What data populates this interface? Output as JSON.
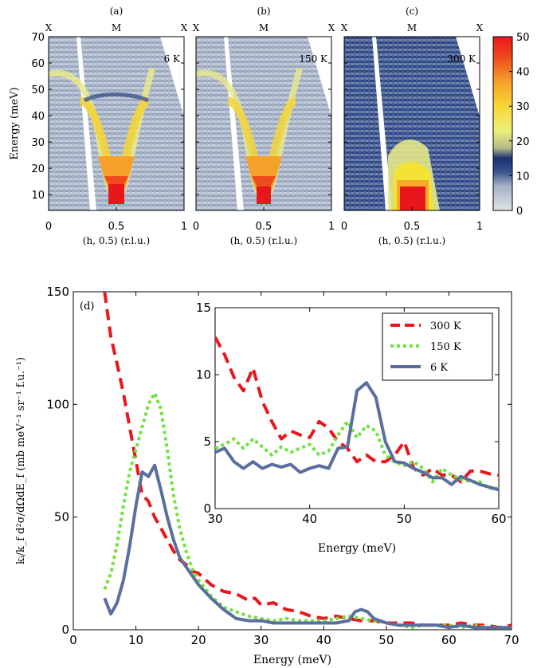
{
  "colors": {
    "line_300K": "#e8171c",
    "line_150K": "#6ee33c",
    "line_6K": "#5a6f9e",
    "colormap": [
      "#d9dde2",
      "#a7b4c8",
      "#3c5590",
      "#1a2f72",
      "#e4e88a",
      "#f5e236",
      "#f6a92a",
      "#f0501d",
      "#e8171c"
    ]
  },
  "top_panels": {
    "ylabel": "Energy (meV)",
    "xlabel": "(h, 0.5) (r.l.u.)",
    "x_ticks": [
      "0",
      "0.5",
      "1"
    ],
    "y_ticks": [
      "10",
      "20",
      "30",
      "40",
      "50",
      "60",
      "70"
    ],
    "sym_labels": [
      "X",
      "M",
      "X"
    ],
    "panels": [
      {
        "tag": "(a)",
        "temp": "6 K"
      },
      {
        "tag": "(b)",
        "temp": "150 K"
      },
      {
        "tag": "(c)",
        "temp": "300 K"
      }
    ],
    "colorbar": {
      "ticks": [
        "0",
        "10",
        "20",
        "30",
        "40",
        "50"
      ],
      "range": [
        0,
        50
      ]
    }
  },
  "chart_data": [
    {
      "type": "heatmap",
      "panel": "(a)",
      "label": "6 K",
      "xlim": [
        0,
        1
      ],
      "ylim": [
        4,
        70
      ],
      "colorbar_range": [
        0,
        50
      ],
      "note": "Dispersion V from ~58 meV at h=0 down to maximum intensity at h=0.5, E≈10 meV"
    },
    {
      "type": "heatmap",
      "panel": "(b)",
      "label": "150 K",
      "xlim": [
        0,
        1
      ],
      "ylim": [
        4,
        70
      ],
      "colorbar_range": [
        0,
        50
      ]
    },
    {
      "type": "heatmap",
      "panel": "(c)",
      "label": "300 K",
      "xlim": [
        0,
        1
      ],
      "ylim": [
        4,
        70
      ],
      "colorbar_range": [
        0,
        50
      ]
    },
    {
      "type": "line",
      "panel": "(d)",
      "xlabel": "Energy (meV)",
      "ylabel": "ki/kf d²σ/dΩdEf (mb meV⁻¹ sr⁻¹ f.u.⁻¹)",
      "xlim": [
        0,
        70
      ],
      "ylim": [
        0,
        150
      ],
      "xticks": [
        0,
        10,
        20,
        30,
        40,
        50,
        60,
        70
      ],
      "yticks": [
        0,
        50,
        100,
        150
      ],
      "series": [
        {
          "name": "300 K",
          "x": [
            5,
            6,
            7,
            8,
            9,
            10,
            11,
            12,
            13,
            14,
            15,
            16,
            17,
            18,
            19,
            20,
            22,
            24,
            26,
            28,
            29,
            30,
            32,
            34,
            36,
            38,
            40,
            42,
            44,
            46,
            48,
            50,
            52,
            54,
            56,
            58,
            60,
            62,
            64,
            66,
            68,
            70
          ],
          "y": [
            150,
            130,
            118,
            105,
            90,
            75,
            60,
            57,
            50,
            45,
            40,
            35,
            31,
            29,
            26,
            25,
            20,
            17,
            16,
            13,
            14,
            11,
            12,
            9,
            8,
            6,
            5,
            6,
            5,
            4,
            4,
            3,
            3,
            3,
            2,
            2,
            2,
            3,
            2,
            2,
            1,
            2
          ]
        },
        {
          "name": "150 K",
          "x": [
            5,
            6,
            7,
            8,
            9,
            10,
            11,
            12,
            13,
            14,
            15,
            16,
            17,
            18,
            19,
            20,
            22,
            24,
            26,
            28,
            30,
            32,
            34,
            36,
            38,
            40,
            42,
            44,
            46,
            48,
            50,
            52,
            54,
            56,
            58,
            60,
            62,
            64,
            66,
            68,
            70
          ],
          "y": [
            18,
            25,
            38,
            55,
            70,
            80,
            90,
            100,
            105,
            98,
            80,
            60,
            45,
            35,
            27,
            22,
            15,
            10,
            8,
            6,
            5,
            4,
            5,
            4,
            4,
            4,
            5,
            6,
            5,
            4,
            3,
            2,
            1,
            2,
            2,
            2,
            1,
            2,
            1,
            1,
            1
          ]
        },
        {
          "name": "6 K",
          "x": [
            5,
            6,
            7,
            8,
            9,
            10,
            11,
            12,
            13,
            14,
            15,
            16,
            17,
            18,
            19,
            20,
            22,
            24,
            26,
            28,
            30,
            32,
            34,
            36,
            38,
            40,
            42,
            44,
            45,
            46,
            47,
            48,
            50,
            52,
            54,
            56,
            58,
            60,
            62,
            64,
            66,
            68,
            70
          ],
          "y": [
            14,
            7,
            12,
            22,
            37,
            55,
            70,
            68,
            73,
            62,
            50,
            40,
            32,
            28,
            24,
            20,
            14,
            9,
            5,
            4,
            4,
            3,
            3,
            3,
            3,
            3,
            3,
            4,
            8,
            9,
            8,
            5,
            3,
            2,
            2,
            2,
            2,
            1,
            2,
            1,
            1,
            1,
            1
          ]
        }
      ]
    },
    {
      "type": "line",
      "panel": "(d) inset",
      "xlabel": "Energy (meV)",
      "xlim": [
        30,
        60
      ],
      "ylim": [
        0,
        15
      ],
      "xticks": [
        30,
        40,
        50,
        60
      ],
      "yticks": [
        0,
        5,
        10,
        15
      ],
      "legend": "top-right",
      "series": [
        {
          "name": "300 K",
          "x": [
            30,
            31,
            32,
            33,
            34,
            35,
            36,
            37,
            38,
            39,
            40,
            41,
            42,
            43,
            44,
            45,
            46,
            47,
            48,
            49,
            50,
            51,
            52,
            53,
            54,
            55,
            56,
            57,
            58,
            59,
            60
          ],
          "y": [
            12.8,
            11.5,
            9.8,
            8.8,
            10.5,
            8.0,
            6.5,
            5.2,
            5.8,
            5.5,
            5.3,
            6.5,
            6.0,
            5.0,
            4.5,
            3.5,
            4.0,
            3.5,
            3.5,
            4.0,
            5.0,
            3.0,
            2.5,
            3.0,
            2.5,
            2.5,
            2.0,
            2.8,
            2.8,
            2.6,
            2.5
          ]
        },
        {
          "name": "150 K",
          "x": [
            30,
            31,
            32,
            33,
            34,
            35,
            36,
            37,
            38,
            39,
            40,
            41,
            42,
            43,
            44,
            45,
            46,
            47,
            48,
            49,
            50,
            51,
            52,
            53,
            54,
            55,
            56,
            57,
            58,
            59,
            60
          ],
          "y": [
            4.5,
            4.8,
            5.2,
            4.5,
            5.2,
            4.6,
            4.0,
            4.6,
            4.2,
            4.5,
            4.8,
            4.0,
            4.3,
            5.5,
            6.5,
            5.3,
            6.2,
            5.8,
            4.0,
            3.5,
            3.2,
            3.5,
            3.0,
            2.0,
            3.0,
            2.5,
            2.2,
            2.0,
            2.0,
            1.5,
            1.5
          ]
        },
        {
          "name": "6 K",
          "x": [
            30,
            31,
            32,
            33,
            34,
            35,
            36,
            37,
            38,
            39,
            40,
            41,
            42,
            43,
            44,
            45,
            46,
            47,
            48,
            49,
            50,
            51,
            52,
            53,
            54,
            55,
            56,
            57,
            58,
            59,
            60
          ],
          "y": [
            4.2,
            4.5,
            3.5,
            3.0,
            3.5,
            3.0,
            3.3,
            3.1,
            3.3,
            2.7,
            3.0,
            3.2,
            3.0,
            4.5,
            4.6,
            8.8,
            9.4,
            8.3,
            5.0,
            3.5,
            3.4,
            3.0,
            2.7,
            2.3,
            2.3,
            1.8,
            2.4,
            2.1,
            1.8,
            1.6,
            1.4
          ]
        }
      ]
    }
  ],
  "panel_d": {
    "tag": "(d)",
    "xlabel": "Energy (meV)",
    "ylabel": "kᵢ/k_f d²σ/dΩdE_f  (mb meV⁻¹ sr⁻¹ f.u.⁻¹)",
    "x_ticks": [
      "0",
      "10",
      "20",
      "30",
      "40",
      "50",
      "60",
      "70"
    ],
    "y_ticks": [
      "0",
      "50",
      "100",
      "150"
    ],
    "inset": {
      "xlabel": "Energy (meV)",
      "x_ticks": [
        "30",
        "40",
        "50",
        "60"
      ],
      "y_ticks": [
        "0",
        "5",
        "10",
        "15"
      ],
      "legend": [
        "300 K",
        "150 K",
        "6 K"
      ]
    }
  }
}
